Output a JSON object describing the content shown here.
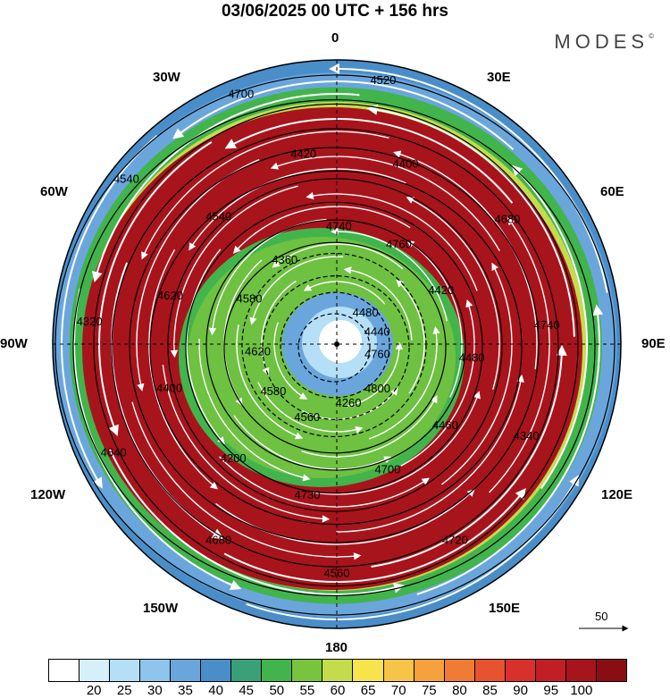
{
  "title": "03/06/2025  00 UTC  + 156 hrs",
  "brand": "MODES",
  "brand_mark": "©",
  "longitude_labels": {
    "lon_0": "0",
    "lon_30e": "30E",
    "lon_60e": "60E",
    "lon_90e": "90E",
    "lon_120e": "120E",
    "lon_150e": "150E",
    "lon_180": "180",
    "lon_150w": "150W",
    "lon_120w": "120W",
    "lon_90w": "90W",
    "lon_60w": "60W",
    "lon_30w": "30W"
  },
  "contour_labels": [
    "4760",
    "4700",
    "4680",
    "4620",
    "4540",
    "4520",
    "4420",
    "4340",
    "4260",
    "4200",
    "4320",
    "4360",
    "4400",
    "4440",
    "4460",
    "4560",
    "4580",
    "4620",
    "4700",
    "4760",
    "4740",
    "4800",
    "4730",
    "4640",
    "4580",
    "4420",
    "4480",
    "4480",
    "4720",
    "4560",
    "4400",
    "4540",
    "4740",
    "4680"
  ],
  "vector_reference": {
    "value": "50"
  },
  "legend": {
    "colors": [
      "#ffffff",
      "#d6f0fb",
      "#b4dff6",
      "#8fc4ec",
      "#6aa6dc",
      "#4a8ec9",
      "#3aa07a",
      "#42b44c",
      "#79c43e",
      "#c4dc4c",
      "#f7e34c",
      "#f8c447",
      "#f6a13c",
      "#ef7b35",
      "#e8532f",
      "#d8302a",
      "#c21e25",
      "#a8141c",
      "#8b0d14"
    ],
    "ticks": [
      "20",
      "25",
      "30",
      "35",
      "40",
      "45",
      "50",
      "55",
      "60",
      "65",
      "70",
      "75",
      "80",
      "85",
      "90",
      "95",
      "100"
    ]
  },
  "palette_levels": {
    "ring_colors": [
      "#4a8ec9",
      "#6aa6dc",
      "#42b44c",
      "#c4dc4c",
      "#f7e34c",
      "#f6a13c",
      "#e8532f",
      "#c21e25",
      "#a8141c",
      "#a8141c",
      "#a8141c",
      "#c21e25",
      "#e8532f",
      "#f6a13c",
      "#c4dc4c",
      "#42b44c",
      "#4a8ec9",
      "#8fc4ec",
      "#d6f0fb",
      "#ffffff"
    ]
  }
}
